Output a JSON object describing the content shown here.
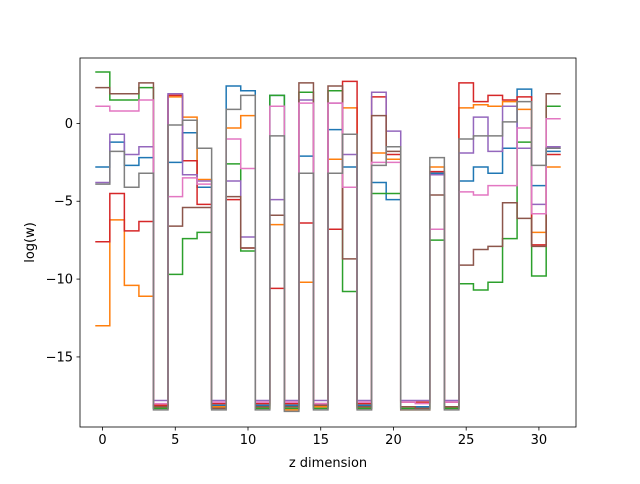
{
  "chart_data": {
    "type": "line",
    "drawstyle": "steps-mid",
    "title": "",
    "xlabel": "z dimension",
    "ylabel": "log(w)",
    "xlim": [
      -1.55,
      32.55
    ],
    "ylim": [
      -19.5,
      4.2
    ],
    "xticks": [
      0,
      5,
      10,
      15,
      20,
      25,
      30
    ],
    "yticks": [
      0,
      -5,
      -10,
      -15
    ],
    "grid": false,
    "legend": "none",
    "x": [
      0,
      1,
      2,
      3,
      4,
      5,
      6,
      7,
      8,
      9,
      10,
      11,
      12,
      13,
      14,
      15,
      16,
      17,
      18,
      19,
      20,
      21,
      22,
      23,
      24,
      25,
      26,
      27,
      28,
      29,
      30,
      31
    ],
    "series": [
      {
        "color": "#1f77b4",
        "values": [
          -2.8,
          -1.2,
          -2.7,
          -2.2,
          -18.1,
          -2.5,
          -0.6,
          -4.1,
          -18.1,
          2.4,
          2.1,
          -18.1,
          1.8,
          -18.1,
          -2.1,
          -18.1,
          -0.4,
          -2.8,
          -18.1,
          -3.8,
          -4.9,
          -18.2,
          -18.2,
          -3.2,
          -18.2,
          -3.7,
          -2.8,
          -3.2,
          -1.6,
          2.2,
          -4.0,
          -1.8
        ]
      },
      {
        "color": "#ff7f0e",
        "values": [
          -13.0,
          -6.2,
          -10.4,
          -11.1,
          -18.3,
          1.7,
          0.4,
          -3.6,
          -18.2,
          -0.3,
          0.5,
          -18.3,
          -6.5,
          -18.4,
          -10.2,
          -18.2,
          -2.3,
          1.0,
          -18.3,
          -1.9,
          -2.3,
          -18.4,
          -18.4,
          -2.8,
          -18.3,
          1.0,
          1.2,
          1.1,
          1.4,
          0.9,
          -7.0,
          -2.8
        ]
      },
      {
        "color": "#2ca02c",
        "values": [
          3.3,
          1.5,
          1.5,
          2.3,
          -18.3,
          -9.7,
          -7.4,
          -7.0,
          -18.3,
          -2.6,
          -8.2,
          -18.3,
          1.8,
          -18.3,
          2.0,
          -18.3,
          2.1,
          -10.8,
          -18.3,
          -4.5,
          -4.5,
          -18.3,
          -18.3,
          -7.5,
          -18.3,
          -10.3,
          -10.7,
          -10.2,
          -7.4,
          -1.2,
          -9.8,
          1.1
        ]
      },
      {
        "color": "#d62728",
        "values": [
          -7.6,
          -4.5,
          -6.9,
          -6.3,
          -18.1,
          1.8,
          -2.4,
          -5.2,
          -18.0,
          -4.9,
          -8.0,
          -18.0,
          -10.6,
          -18.0,
          -6.4,
          -18.0,
          -6.8,
          2.7,
          -18.0,
          1.7,
          -2.0,
          -17.9,
          -17.9,
          -3.1,
          -17.9,
          2.6,
          1.4,
          1.8,
          1.5,
          1.7,
          -7.8,
          -2.0
        ]
      },
      {
        "color": "#9467bd",
        "values": [
          -3.8,
          -0.7,
          -2.0,
          -1.5,
          -17.8,
          1.9,
          -3.3,
          -3.7,
          -17.8,
          -3.7,
          -7.3,
          -17.8,
          -4.9,
          -17.8,
          1.5,
          -17.8,
          1.3,
          -2.0,
          -17.8,
          2.0,
          -0.5,
          -17.8,
          -17.8,
          -3.3,
          -17.8,
          -1.9,
          0.4,
          -1.8,
          1.1,
          -1.6,
          -5.2,
          -1.5
        ]
      },
      {
        "color": "#8c564b",
        "values": [
          2.3,
          1.9,
          1.9,
          2.6,
          -18.2,
          -6.6,
          -5.4,
          -5.4,
          -18.3,
          -4.7,
          -8.0,
          -18.2,
          -5.9,
          -18.2,
          2.6,
          -18.1,
          2.4,
          -8.7,
          -18.2,
          0.5,
          -1.8,
          -18.2,
          -18.3,
          -4.6,
          -18.2,
          -9.1,
          -8.1,
          -7.9,
          -5.1,
          -6.1,
          -7.9,
          1.9
        ]
      },
      {
        "color": "#e377c2",
        "values": [
          1.1,
          0.8,
          0.8,
          1.5,
          -18.0,
          -4.7,
          -3.5,
          -3.9,
          -17.9,
          -1.0,
          -2.9,
          -17.9,
          1.1,
          -17.9,
          1.3,
          -18.0,
          1.3,
          -4.1,
          -17.9,
          -2.5,
          -2.5,
          -17.9,
          -18.0,
          -6.8,
          -17.9,
          -4.4,
          -4.6,
          -4.0,
          -4.0,
          -0.3,
          -5.8,
          0.3
        ]
      },
      {
        "color": "#7f7f7f",
        "values": [
          -3.9,
          -1.8,
          -4.1,
          -3.2,
          -18.4,
          -0.1,
          0.2,
          -1.6,
          -18.4,
          0.9,
          1.8,
          -18.4,
          -0.8,
          -18.5,
          -3.2,
          -18.4,
          -3.2,
          -0.7,
          -18.4,
          -2.7,
          -1.5,
          -18.4,
          -18.4,
          -2.2,
          -18.4,
          -1.0,
          -0.8,
          -0.8,
          0.1,
          1.4,
          -2.7,
          -1.6
        ]
      }
    ]
  }
}
